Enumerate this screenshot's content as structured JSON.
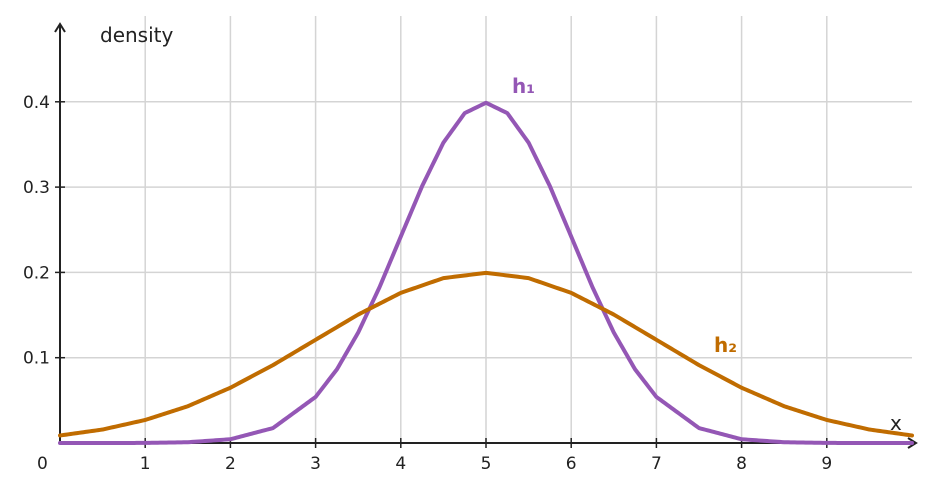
{
  "chart_data": {
    "type": "line",
    "title": "",
    "xlabel": "x",
    "ylabel": "density",
    "xlim": [
      0,
      10
    ],
    "ylim": [
      0,
      0.46
    ],
    "x_ticks": [
      1,
      2,
      3,
      4,
      5,
      6,
      7,
      8,
      9
    ],
    "y_ticks": [
      0.1,
      0.2,
      0.3,
      0.4
    ],
    "x_tick_labels": [
      "1",
      "2",
      "3",
      "4",
      "5",
      "6",
      "7",
      "8",
      "9"
    ],
    "y_tick_labels": [
      "0.1",
      "0.2",
      "0.3",
      "0.4"
    ],
    "origin_label": "0",
    "grid": true,
    "series": [
      {
        "name": "h₁",
        "color": "#9457b5",
        "x": [
          0,
          0.5,
          1,
          1.5,
          2,
          2.5,
          3,
          3.25,
          3.5,
          3.75,
          4,
          4.25,
          4.5,
          4.75,
          5,
          5.25,
          5.5,
          5.75,
          6,
          6.25,
          6.5,
          6.75,
          7,
          7.5,
          8,
          8.5,
          9,
          9.5,
          10
        ],
        "y": [
          0.0,
          0.0,
          0.0001,
          0.0009,
          0.0044,
          0.0175,
          0.054,
          0.0863,
          0.1295,
          0.1826,
          0.242,
          0.3011,
          0.3521,
          0.3867,
          0.3989,
          0.3867,
          0.3521,
          0.3011,
          0.242,
          0.1826,
          0.1295,
          0.0863,
          0.054,
          0.0175,
          0.0044,
          0.0009,
          0.0001,
          0.0,
          0.0
        ]
      },
      {
        "name": "h₂",
        "color": "#c06c00",
        "x": [
          0,
          0.5,
          1,
          1.5,
          2,
          2.5,
          3,
          3.5,
          4,
          4.5,
          5,
          5.5,
          6,
          6.5,
          7,
          7.5,
          8,
          8.5,
          9,
          9.5,
          10
        ],
        "y": [
          0.0088,
          0.0158,
          0.027,
          0.0431,
          0.0648,
          0.0913,
          0.121,
          0.1506,
          0.176,
          0.1933,
          0.1995,
          0.1933,
          0.176,
          0.1506,
          0.121,
          0.0913,
          0.0648,
          0.0431,
          0.027,
          0.0158,
          0.0088
        ]
      }
    ]
  }
}
